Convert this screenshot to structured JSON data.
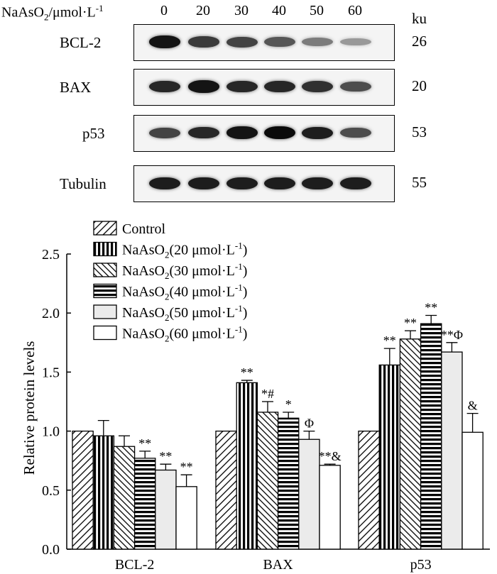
{
  "blot": {
    "header_compound": "NaAsO",
    "header_sub": "2",
    "header_unit": "/μmol·L",
    "header_sup": "-1",
    "doses": [
      "0",
      "20",
      "30",
      "40",
      "50",
      "60"
    ],
    "unit_label": "ku",
    "rows": [
      {
        "label": "BCL-2",
        "ku": "26",
        "intensity": [
          0.95,
          0.75,
          0.7,
          0.6,
          0.4,
          0.25
        ]
      },
      {
        "label": "BAX",
        "ku": "20",
        "intensity": [
          0.85,
          0.95,
          0.85,
          0.85,
          0.8,
          0.65
        ]
      },
      {
        "label": "p53",
        "ku": "53",
        "intensity": [
          0.7,
          0.85,
          0.95,
          1.0,
          0.9,
          0.65
        ]
      },
      {
        "label": "Tubulin",
        "ku": "55",
        "intensity": [
          0.9,
          0.9,
          0.9,
          0.9,
          0.9,
          0.9
        ]
      }
    ]
  },
  "chart_data": {
    "type": "bar",
    "categories": [
      "BCL-2",
      "BAX",
      "p53"
    ],
    "ylabel": "Relative protein levels",
    "ylim": [
      0,
      2.5
    ],
    "yticks": [
      "0.0",
      "0.5",
      "1.0",
      "1.5",
      "2.0",
      "2.5"
    ],
    "legend_position": "top-left",
    "series": [
      {
        "name": "Control",
        "legend_main": "Control",
        "legend_unit": "",
        "pattern": "diag-right",
        "values": [
          1.0,
          1.0,
          1.0
        ],
        "errors": [
          0,
          0,
          0
        ],
        "annotations": [
          "",
          "",
          ""
        ]
      },
      {
        "name": "NaAsO2(20 μmol·L-1)",
        "legend_main": "NaAsO",
        "legend_unit": "(20 μmol·L",
        "pattern": "vertical",
        "values": [
          0.96,
          1.41,
          1.56
        ],
        "errors": [
          0.13,
          0.02,
          0.14
        ],
        "annotations": [
          "",
          "**",
          "**"
        ]
      },
      {
        "name": "NaAsO2(30 μmol·L-1)",
        "legend_main": "NaAsO",
        "legend_unit": "(30 μmol·L",
        "pattern": "diag-left",
        "values": [
          0.87,
          1.16,
          1.78
        ],
        "errors": [
          0.09,
          0.09,
          0.07
        ],
        "annotations": [
          "",
          "*#",
          "**"
        ]
      },
      {
        "name": "NaAsO2(40 μmol·L-1)",
        "legend_main": "NaAsO",
        "legend_unit": "(40 μmol·L",
        "pattern": "horizontal",
        "values": [
          0.77,
          1.11,
          1.91
        ],
        "errors": [
          0.06,
          0.05,
          0.07
        ],
        "annotations": [
          "**",
          "*",
          "**"
        ]
      },
      {
        "name": "NaAsO2(50 μmol·L-1)",
        "legend_main": "NaAsO",
        "legend_unit": "(50 μmol·L",
        "pattern": "lightgray",
        "values": [
          0.67,
          0.93,
          1.67
        ],
        "errors": [
          0.05,
          0.07,
          0.08
        ],
        "annotations": [
          "**",
          "Φ",
          "**Φ"
        ]
      },
      {
        "name": "NaAsO2(60 μmol·L-1)",
        "legend_main": "NaAsO",
        "legend_unit": "(60 μmol·L",
        "pattern": "white",
        "values": [
          0.53,
          0.71,
          0.99
        ],
        "errors": [
          0.1,
          0.01,
          0.16
        ],
        "annotations": [
          "**",
          "**&",
          "&"
        ]
      }
    ],
    "legend_sub": "2",
    "legend_sup": "-1",
    "legend_close": ")"
  }
}
